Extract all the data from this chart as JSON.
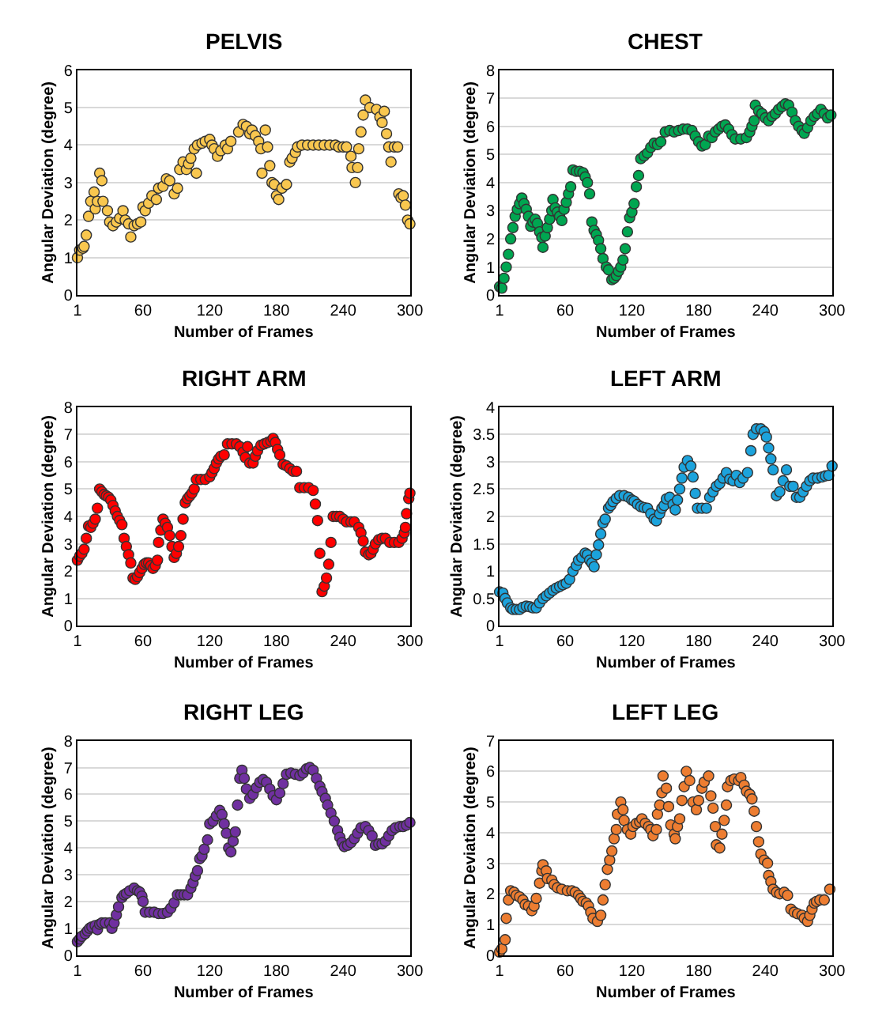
{
  "chart_data": [
    {
      "type": "scatter",
      "title": "PELVIS",
      "xlabel": "Number of Frames",
      "ylabel": "Angular Deviation (degree)",
      "color": "#f9c74f",
      "marker": "circle",
      "grid": "y",
      "xlim": [
        1,
        300
      ],
      "xticks": [
        1,
        60,
        120,
        180,
        240,
        300
      ],
      "ylim": [
        0,
        6
      ],
      "yticks": [
        0,
        1,
        2,
        3,
        4,
        5,
        6
      ],
      "x": [
        1,
        3,
        6,
        7,
        9,
        11,
        13,
        16,
        17,
        19,
        21,
        23,
        24,
        28,
        30,
        33,
        36,
        39,
        42,
        44,
        47,
        49,
        52,
        55,
        58,
        60,
        62,
        65,
        68,
        72,
        74,
        78,
        81,
        84,
        88,
        91,
        93,
        96,
        99,
        101,
        103,
        106,
        108,
        109,
        113,
        116,
        120,
        122,
        124,
        127,
        130,
        134,
        136,
        139,
        146,
        150,
        153,
        156,
        158,
        161,
        164,
        166,
        167,
        170,
        172,
        174,
        176,
        178,
        180,
        182,
        185,
        189,
        192,
        194,
        197,
        199,
        203,
        208,
        213,
        218,
        223,
        228,
        233,
        236,
        240,
        243,
        247,
        248,
        251,
        253,
        254,
        256,
        258,
        260,
        264,
        270,
        273,
        275,
        277,
        279,
        281,
        283,
        286,
        289,
        290,
        292,
        294,
        296,
        298,
        300
      ],
      "values": [
        1.0,
        1.2,
        1.25,
        1.3,
        1.6,
        2.1,
        2.5,
        2.75,
        2.3,
        2.5,
        3.25,
        3.05,
        2.5,
        2.25,
        1.95,
        1.85,
        1.95,
        2.05,
        2.25,
        2.0,
        1.9,
        1.55,
        1.85,
        1.9,
        1.95,
        2.35,
        2.25,
        2.45,
        2.65,
        2.55,
        2.85,
        2.9,
        3.1,
        3.05,
        2.7,
        2.85,
        3.35,
        3.55,
        3.35,
        3.5,
        3.65,
        3.9,
        3.25,
        4.0,
        4.05,
        4.1,
        4.15,
        4.0,
        3.9,
        3.7,
        3.85,
        4.0,
        3.9,
        4.1,
        4.35,
        4.55,
        4.5,
        4.3,
        4.4,
        4.25,
        4.1,
        3.9,
        3.25,
        4.4,
        3.95,
        3.45,
        3.0,
        2.95,
        2.65,
        2.55,
        2.85,
        2.95,
        3.55,
        3.65,
        3.8,
        3.95,
        4.0,
        4.0,
        4.0,
        4.0,
        4.0,
        4.0,
        4.0,
        3.95,
        3.95,
        3.95,
        3.7,
        3.4,
        3.0,
        3.4,
        3.9,
        4.35,
        4.8,
        5.2,
        5.0,
        4.95,
        4.75,
        4.6,
        4.9,
        4.3,
        3.95,
        3.55,
        3.95,
        3.95,
        2.7,
        2.6,
        2.65,
        2.4,
        2.0,
        1.9
      ]
    },
    {
      "type": "scatter",
      "title": "CHEST",
      "xlabel": "Number of Frames",
      "ylabel": "Angular Deviation (degree)",
      "color": "#00a651",
      "marker": "circle",
      "grid": "y",
      "xlim": [
        1,
        300
      ],
      "xticks": [
        1,
        60,
        120,
        180,
        240,
        300
      ],
      "ylim": [
        0,
        8
      ],
      "yticks": [
        0,
        1,
        2,
        3,
        4,
        5,
        6,
        7,
        8
      ],
      "x": [
        1,
        3,
        5,
        7,
        9,
        11,
        13,
        15,
        17,
        19,
        21,
        23,
        25,
        27,
        29,
        31,
        33,
        35,
        37,
        39,
        40,
        42,
        44,
        46,
        48,
        49,
        51,
        53,
        55,
        57,
        59,
        61,
        63,
        65,
        67,
        70,
        73,
        76,
        78,
        80,
        82,
        84,
        86,
        88,
        90,
        92,
        94,
        97,
        99,
        102,
        104,
        106,
        108,
        110,
        112,
        114,
        116,
        118,
        120,
        122,
        124,
        126,
        128,
        131,
        134,
        137,
        140,
        143,
        146,
        150,
        154,
        158,
        162,
        166,
        170,
        174,
        177,
        180,
        183,
        186,
        189,
        192,
        195,
        198,
        201,
        204,
        207,
        210,
        213,
        218,
        223,
        226,
        228,
        230,
        231,
        234,
        237,
        240,
        243,
        246,
        249,
        252,
        255,
        258,
        261,
        264,
        267,
        270,
        273,
        275,
        278,
        281,
        284,
        287,
        290,
        293,
        296,
        299
      ],
      "values": [
        0.3,
        0.25,
        0.6,
        1.0,
        1.45,
        2.0,
        2.4,
        2.8,
        3.05,
        3.25,
        3.45,
        3.25,
        3.05,
        2.8,
        2.45,
        2.6,
        2.7,
        2.55,
        2.25,
        2.05,
        1.7,
        2.1,
        2.4,
        2.7,
        3.0,
        3.4,
        3.1,
        2.95,
        2.8,
        2.65,
        3.05,
        3.3,
        3.6,
        3.85,
        4.45,
        4.4,
        4.4,
        4.35,
        4.2,
        4.0,
        3.6,
        2.6,
        2.3,
        2.15,
        1.95,
        1.65,
        1.3,
        1.0,
        0.9,
        0.55,
        0.6,
        0.7,
        0.85,
        1.0,
        1.25,
        1.65,
        2.25,
        2.75,
        2.95,
        3.25,
        3.85,
        4.25,
        4.85,
        4.95,
        5.05,
        5.25,
        5.4,
        5.35,
        5.45,
        5.8,
        5.85,
        5.8,
        5.85,
        5.9,
        5.9,
        5.85,
        5.65,
        5.45,
        5.3,
        5.35,
        5.65,
        5.6,
        5.8,
        5.9,
        6.0,
        6.05,
        5.9,
        5.7,
        5.55,
        5.55,
        5.6,
        5.8,
        6.0,
        6.2,
        6.75,
        6.55,
        6.45,
        6.3,
        6.2,
        6.35,
        6.45,
        6.6,
        6.7,
        6.8,
        6.75,
        6.5,
        6.2,
        6.0,
        5.85,
        5.75,
        5.95,
        6.2,
        6.35,
        6.45,
        6.6,
        6.45,
        6.3,
        6.4
      ]
    },
    {
      "type": "scatter",
      "title": "RIGHT ARM",
      "xlabel": "Number of Frames",
      "ylabel": "Angular Deviation (degree)",
      "color": "#ff0000",
      "marker": "circle",
      "grid": "y",
      "xlim": [
        1,
        300
      ],
      "xticks": [
        1,
        60,
        120,
        180,
        240,
        300
      ],
      "ylim": [
        0,
        8
      ],
      "yticks": [
        0,
        1,
        2,
        3,
        4,
        5,
        6,
        7,
        8
      ],
      "x": [
        1,
        3,
        5,
        7,
        9,
        11,
        13,
        15,
        17,
        19,
        21,
        23,
        25,
        27,
        29,
        31,
        33,
        35,
        37,
        39,
        41,
        43,
        45,
        47,
        49,
        51,
        53,
        55,
        57,
        59,
        61,
        63,
        65,
        67,
        69,
        71,
        73,
        74,
        76,
        78,
        80,
        82,
        84,
        86,
        88,
        90,
        92,
        94,
        96,
        98,
        100,
        102,
        104,
        106,
        108,
        112,
        116,
        120,
        122,
        124,
        126,
        128,
        130,
        133,
        136,
        140,
        144,
        147,
        150,
        152,
        154,
        156,
        159,
        161,
        163,
        166,
        169,
        172,
        175,
        177,
        179,
        181,
        183,
        186,
        189,
        192,
        195,
        198,
        201,
        205,
        209,
        213,
        215,
        217,
        219,
        221,
        223,
        225,
        227,
        229,
        231,
        234,
        237,
        240,
        243,
        247,
        250,
        254,
        256,
        258,
        260,
        263,
        265,
        267,
        269,
        272,
        275,
        278,
        282,
        286,
        290,
        293,
        295,
        296,
        297,
        299,
        300
      ],
      "values": [
        2.4,
        2.55,
        2.65,
        2.8,
        3.2,
        3.65,
        3.6,
        3.75,
        3.9,
        4.3,
        5.0,
        4.9,
        4.8,
        4.75,
        4.7,
        4.6,
        4.4,
        4.2,
        4.0,
        3.85,
        3.7,
        3.2,
        2.9,
        2.6,
        2.3,
        1.75,
        1.7,
        1.8,
        1.95,
        2.1,
        2.25,
        2.3,
        2.3,
        2.2,
        2.1,
        2.2,
        2.4,
        3.05,
        3.5,
        3.9,
        3.75,
        3.6,
        3.3,
        2.9,
        2.5,
        2.65,
        2.9,
        3.3,
        3.9,
        4.5,
        4.65,
        4.75,
        4.85,
        5.0,
        5.35,
        5.35,
        5.35,
        5.45,
        5.6,
        5.75,
        5.95,
        6.1,
        6.2,
        6.25,
        6.65,
        6.65,
        6.65,
        6.55,
        6.35,
        6.15,
        6.55,
        5.95,
        5.95,
        6.2,
        6.4,
        6.6,
        6.65,
        6.7,
        6.75,
        6.85,
        6.7,
        6.45,
        6.25,
        5.9,
        5.85,
        5.75,
        5.65,
        5.65,
        5.05,
        5.05,
        5.05,
        4.95,
        4.45,
        3.85,
        2.65,
        1.25,
        1.45,
        1.75,
        2.25,
        3.05,
        4.0,
        4.0,
        4.0,
        3.9,
        3.8,
        3.8,
        3.8,
        3.6,
        3.4,
        3.1,
        2.7,
        2.6,
        2.65,
        2.8,
        3.0,
        3.15,
        3.2,
        3.2,
        3.05,
        3.05,
        3.05,
        3.2,
        3.4,
        3.6,
        4.1,
        4.65,
        4.85
      ]
    },
    {
      "type": "scatter",
      "title": "LEFT ARM",
      "xlabel": "Number of Frames",
      "ylabel": "Angular Deviation (degree)",
      "color": "#1ca3dc",
      "marker": "circle",
      "grid": "y",
      "xlim": [
        1,
        300
      ],
      "xticks": [
        1,
        60,
        120,
        180,
        240,
        300
      ],
      "ylim": [
        0,
        4
      ],
      "yticks": [
        0,
        0.5,
        1,
        1.5,
        2,
        2.5,
        3,
        3.5,
        4
      ],
      "x": [
        1,
        4,
        6,
        8,
        11,
        13,
        16,
        19,
        22,
        25,
        28,
        31,
        34,
        37,
        40,
        43,
        46,
        49,
        52,
        55,
        58,
        61,
        64,
        67,
        70,
        72,
        75,
        78,
        80,
        82,
        84,
        86,
        88,
        90,
        92,
        94,
        96,
        99,
        101,
        103,
        106,
        109,
        113,
        117,
        120,
        122,
        125,
        128,
        131,
        134,
        137,
        140,
        142,
        145,
        147,
        149,
        151,
        154,
        157,
        159,
        161,
        163,
        165,
        167,
        170,
        173,
        175,
        177,
        179,
        183,
        187,
        190,
        193,
        196,
        199,
        202,
        205,
        208,
        211,
        214,
        217,
        220,
        224,
        227,
        229,
        232,
        236,
        239,
        241,
        243,
        245,
        247,
        250,
        253,
        256,
        259,
        262,
        265,
        268,
        271,
        274,
        277,
        280,
        283,
        287,
        291,
        294,
        297,
        300
      ],
      "values": [
        0.62,
        0.6,
        0.5,
        0.42,
        0.33,
        0.3,
        0.3,
        0.3,
        0.34,
        0.36,
        0.35,
        0.33,
        0.33,
        0.42,
        0.5,
        0.55,
        0.6,
        0.65,
        0.69,
        0.72,
        0.75,
        0.78,
        0.85,
        1.0,
        1.1,
        1.2,
        1.25,
        1.33,
        1.3,
        1.2,
        1.15,
        1.08,
        1.3,
        1.48,
        1.68,
        1.88,
        1.95,
        2.15,
        2.2,
        2.27,
        2.33,
        2.38,
        2.38,
        2.35,
        2.3,
        2.28,
        2.22,
        2.18,
        2.16,
        2.15,
        2.05,
        1.95,
        1.92,
        2.05,
        2.15,
        2.2,
        2.32,
        2.35,
        2.22,
        2.12,
        2.3,
        2.5,
        2.7,
        2.9,
        3.02,
        2.92,
        2.72,
        2.42,
        2.15,
        2.15,
        2.15,
        2.35,
        2.45,
        2.55,
        2.6,
        2.7,
        2.8,
        2.68,
        2.65,
        2.75,
        2.62,
        2.7,
        2.8,
        3.2,
        3.5,
        3.6,
        3.6,
        3.55,
        3.45,
        3.25,
        3.05,
        2.85,
        2.38,
        2.45,
        2.65,
        2.85,
        2.55,
        2.55,
        2.35,
        2.35,
        2.45,
        2.55,
        2.65,
        2.7,
        2.7,
        2.72,
        2.74,
        2.75,
        2.92
      ]
    },
    {
      "type": "scatter",
      "title": "RIGHT LEG",
      "xlabel": "Number of Frames",
      "ylabel": "Angular Deviation (degree)",
      "color": "#7030a0",
      "marker": "circle",
      "grid": "y",
      "xlim": [
        1,
        300
      ],
      "xticks": [
        1,
        60,
        120,
        180,
        240,
        300
      ],
      "ylim": [
        0,
        8
      ],
      "yticks": [
        0,
        1,
        2,
        3,
        4,
        5,
        6,
        7,
        8
      ],
      "x": [
        1,
        3,
        5,
        8,
        10,
        12,
        14,
        17,
        19,
        21,
        23,
        26,
        30,
        32,
        34,
        36,
        38,
        41,
        43,
        45,
        48,
        52,
        55,
        57,
        59,
        60,
        62,
        66,
        70,
        74,
        78,
        82,
        85,
        88,
        91,
        94,
        97,
        100,
        103,
        105,
        107,
        109,
        111,
        113,
        115,
        118,
        120,
        123,
        126,
        129,
        131,
        133,
        135,
        137,
        139,
        141,
        143,
        145,
        147,
        149,
        151,
        153,
        156,
        159,
        162,
        165,
        168,
        171,
        174,
        177,
        180,
        183,
        186,
        189,
        193,
        197,
        201,
        204,
        207,
        210,
        213,
        216,
        219,
        221,
        224,
        226,
        229,
        232,
        235,
        237,
        239,
        241,
        244,
        247,
        250,
        253,
        256,
        260,
        263,
        266,
        269,
        272,
        275,
        278,
        281,
        284,
        287,
        291,
        294,
        297,
        300
      ],
      "values": [
        0.5,
        0.6,
        0.7,
        0.8,
        0.9,
        1.0,
        1.05,
        1.1,
        0.95,
        1.15,
        1.2,
        1.2,
        1.2,
        1.0,
        1.2,
        1.5,
        1.8,
        2.15,
        2.25,
        2.3,
        2.4,
        2.5,
        2.4,
        2.35,
        2.2,
        2.0,
        1.6,
        1.6,
        1.6,
        1.55,
        1.55,
        1.6,
        1.75,
        1.95,
        2.25,
        2.25,
        2.25,
        2.25,
        2.5,
        2.7,
        2.95,
        3.15,
        3.6,
        3.7,
        3.95,
        4.3,
        4.9,
        5.0,
        5.2,
        5.4,
        5.25,
        4.9,
        4.55,
        4.0,
        3.85,
        4.25,
        4.6,
        5.6,
        6.6,
        6.9,
        6.6,
        6.2,
        5.85,
        6.0,
        6.25,
        6.45,
        6.55,
        6.45,
        6.2,
        5.95,
        5.8,
        6.05,
        6.4,
        6.75,
        6.8,
        6.75,
        6.7,
        6.8,
        6.95,
        7.0,
        6.9,
        6.6,
        6.3,
        6.1,
        5.85,
        5.6,
        5.3,
        5.0,
        4.65,
        4.4,
        4.2,
        4.05,
        4.1,
        4.2,
        4.35,
        4.55,
        4.75,
        4.8,
        4.65,
        4.45,
        4.1,
        4.15,
        4.15,
        4.25,
        4.45,
        4.65,
        4.75,
        4.8,
        4.8,
        4.85,
        4.95
      ]
    },
    {
      "type": "scatter",
      "title": "LEFT LEG",
      "xlabel": "Number of Frames",
      "ylabel": "Angular Deviation (degree)",
      "color": "#ed7d31",
      "marker": "circle",
      "grid": "y",
      "xlim": [
        1,
        300
      ],
      "xticks": [
        1,
        60,
        120,
        180,
        240,
        300
      ],
      "ylim": [
        0,
        7
      ],
      "yticks": [
        0,
        1,
        2,
        3,
        4,
        5,
        6,
        7
      ],
      "x": [
        1,
        3,
        6,
        7,
        9,
        11,
        14,
        16,
        19,
        22,
        24,
        27,
        30,
        32,
        34,
        37,
        39,
        40,
        43,
        44,
        48,
        50,
        53,
        57,
        62,
        66,
        69,
        72,
        74,
        76,
        79,
        81,
        83,
        85,
        89,
        92,
        94,
        96,
        98,
        100,
        102,
        104,
        106,
        107,
        110,
        112,
        113,
        116,
        119,
        121,
        124,
        127,
        129,
        132,
        135,
        137,
        139,
        142,
        143,
        145,
        147,
        148,
        151,
        153,
        155,
        158,
        159,
        161,
        163,
        165,
        167,
        169,
        172,
        175,
        178,
        180,
        183,
        185,
        189,
        191,
        193,
        195,
        196,
        199,
        201,
        203,
        205,
        206,
        209,
        212,
        216,
        218,
        221,
        223,
        226,
        228,
        230,
        232,
        234,
        236,
        239,
        242,
        243,
        245,
        247,
        250,
        253,
        257,
        260,
        263,
        266,
        269,
        273,
        275,
        278,
        280,
        282,
        284,
        286,
        289,
        293,
        298
      ],
      "values": [
        0.1,
        0.2,
        0.5,
        1.2,
        1.8,
        2.1,
        2.05,
        1.95,
        1.9,
        1.8,
        1.65,
        1.6,
        1.45,
        1.6,
        1.85,
        2.35,
        2.75,
        2.95,
        2.75,
        2.5,
        2.45,
        2.3,
        2.2,
        2.15,
        2.1,
        2.1,
        2.05,
        1.95,
        1.85,
        1.75,
        1.7,
        1.6,
        1.4,
        1.2,
        1.1,
        1.3,
        1.8,
        2.3,
        2.8,
        3.1,
        3.4,
        3.8,
        4.1,
        4.6,
        5.0,
        4.75,
        4.4,
        4.1,
        3.95,
        4.2,
        4.3,
        4.35,
        4.45,
        4.3,
        4.2,
        4.1,
        3.9,
        4.1,
        4.6,
        4.9,
        5.3,
        5.85,
        5.45,
        4.85,
        4.25,
        3.95,
        3.8,
        4.2,
        4.45,
        5.05,
        5.5,
        6.0,
        5.7,
        5.0,
        4.75,
        5.05,
        5.45,
        5.65,
        5.85,
        5.2,
        4.8,
        4.2,
        3.6,
        3.5,
        3.95,
        4.4,
        4.9,
        5.5,
        5.7,
        5.75,
        5.7,
        5.8,
        5.55,
        5.35,
        5.25,
        5.1,
        4.7,
        4.2,
        3.7,
        3.3,
        3.1,
        3.0,
        2.6,
        2.4,
        2.15,
        2.05,
        2.0,
        2.05,
        1.95,
        1.5,
        1.4,
        1.35,
        1.3,
        1.2,
        1.1,
        1.3,
        1.5,
        1.7,
        1.75,
        1.8,
        1.8,
        2.15
      ]
    }
  ]
}
